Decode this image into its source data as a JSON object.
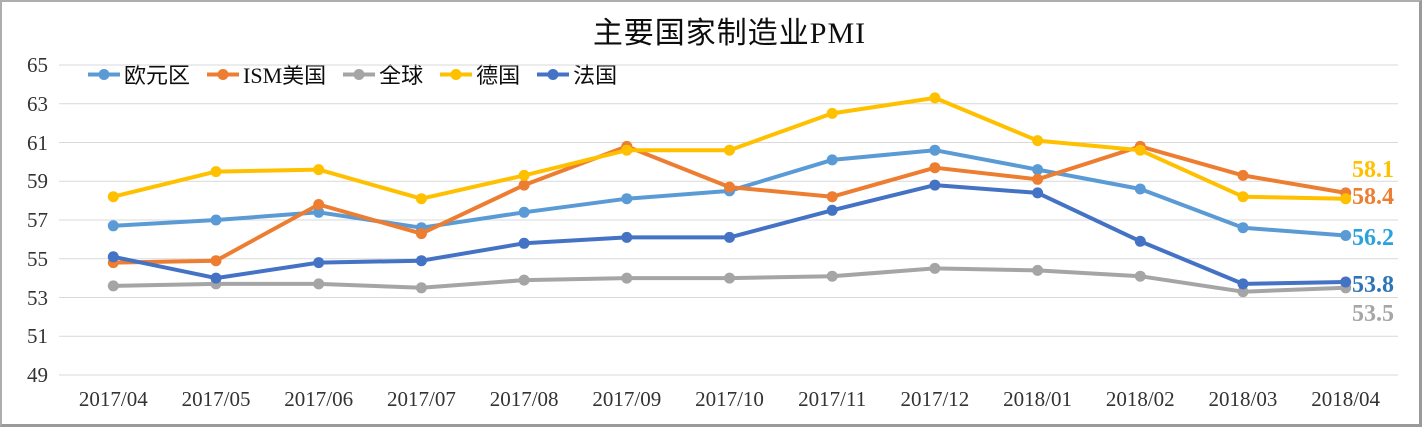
{
  "window": {
    "background": "#ffffff",
    "frame_color": "#9a9a9a"
  },
  "chart_data": {
    "type": "line",
    "title": "主要国家制造业PMI",
    "categories": [
      "2017/04",
      "2017/05",
      "2017/06",
      "2017/07",
      "2017/08",
      "2017/09",
      "2017/10",
      "2017/11",
      "2017/12",
      "2018/01",
      "2018/02",
      "2018/03",
      "2018/04"
    ],
    "series": [
      {
        "name": "欧元区",
        "color": "#5B9BD5",
        "values": [
          56.7,
          57.0,
          57.4,
          56.6,
          57.4,
          58.1,
          58.5,
          60.1,
          60.6,
          59.6,
          58.6,
          56.6,
          56.2
        ],
        "end_label": {
          "text": "56.2",
          "color": "#2BA2DC"
        }
      },
      {
        "name": "ISM美国",
        "color": "#ED7D31",
        "values": [
          54.8,
          54.9,
          57.8,
          56.3,
          58.8,
          60.8,
          58.7,
          58.2,
          59.7,
          59.1,
          60.8,
          59.3,
          58.4
        ],
        "end_label": {
          "text": "58.4",
          "color": "#ED7D31"
        }
      },
      {
        "name": "全球",
        "color": "#A5A5A5",
        "values": [
          53.6,
          53.7,
          53.7,
          53.5,
          53.9,
          54.0,
          54.0,
          54.1,
          54.5,
          54.4,
          54.1,
          53.3,
          53.5
        ],
        "end_label": {
          "text": "53.5",
          "color": "#A6A6A6"
        }
      },
      {
        "name": "德国",
        "color": "#FFC000",
        "values": [
          58.2,
          59.5,
          59.6,
          58.1,
          59.3,
          60.6,
          60.6,
          62.5,
          63.3,
          61.1,
          60.6,
          58.2,
          58.1
        ],
        "end_label": {
          "text": "58.1",
          "color": "#FFC000"
        }
      },
      {
        "name": "法国",
        "color": "#4472C4",
        "values": [
          55.1,
          54.0,
          54.8,
          54.9,
          55.8,
          56.1,
          56.1,
          57.5,
          58.8,
          58.4,
          55.9,
          53.7,
          53.8
        ],
        "end_label": {
          "text": "53.8",
          "color": "#2E75B6"
        }
      }
    ],
    "yticks": [
      65,
      63,
      61,
      59,
      57,
      55,
      53,
      51,
      49
    ],
    "ylim": [
      49,
      65
    ],
    "grid": "horizontal",
    "grid_color": "#D9D9D9",
    "legend_position": "top",
    "marker": "circle"
  }
}
